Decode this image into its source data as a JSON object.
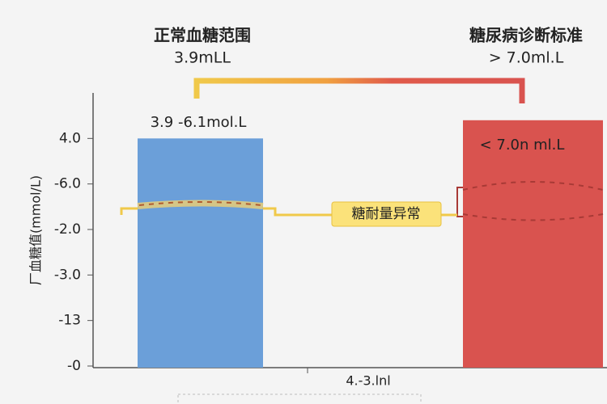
{
  "chart_data": {
    "type": "bar",
    "left_title": [
      "正常血糖范围",
      "3.9mLL"
    ],
    "right_title": [
      "糖尿病诊断标准",
      "> 7.0ml.L"
    ],
    "annotations": [
      "3.9  -6.1mol.L",
      "< 7.0n ml.L",
      "糖耐量异常"
    ],
    "ylabel": "厂血糖值(mmol/L)",
    "xlabel": "4.-3.lnl",
    "categories": [
      null,
      null
    ],
    "values": [
      5,
      5.4
    ],
    "colors": [
      "#6b9fd9",
      "#d9534f"
    ],
    "ylim": [
      0,
      6
    ],
    "yticks": [
      {
        "value": 0,
        "label": "-0"
      },
      {
        "value": 1,
        "label": "-13"
      },
      {
        "value": 2,
        "label": "-3.0"
      },
      {
        "value": 3,
        "label": "-2.0"
      },
      {
        "value": 4,
        "label": "-6.0"
      },
      {
        "value": 5,
        "label": "4.0"
      }
    ]
  }
}
